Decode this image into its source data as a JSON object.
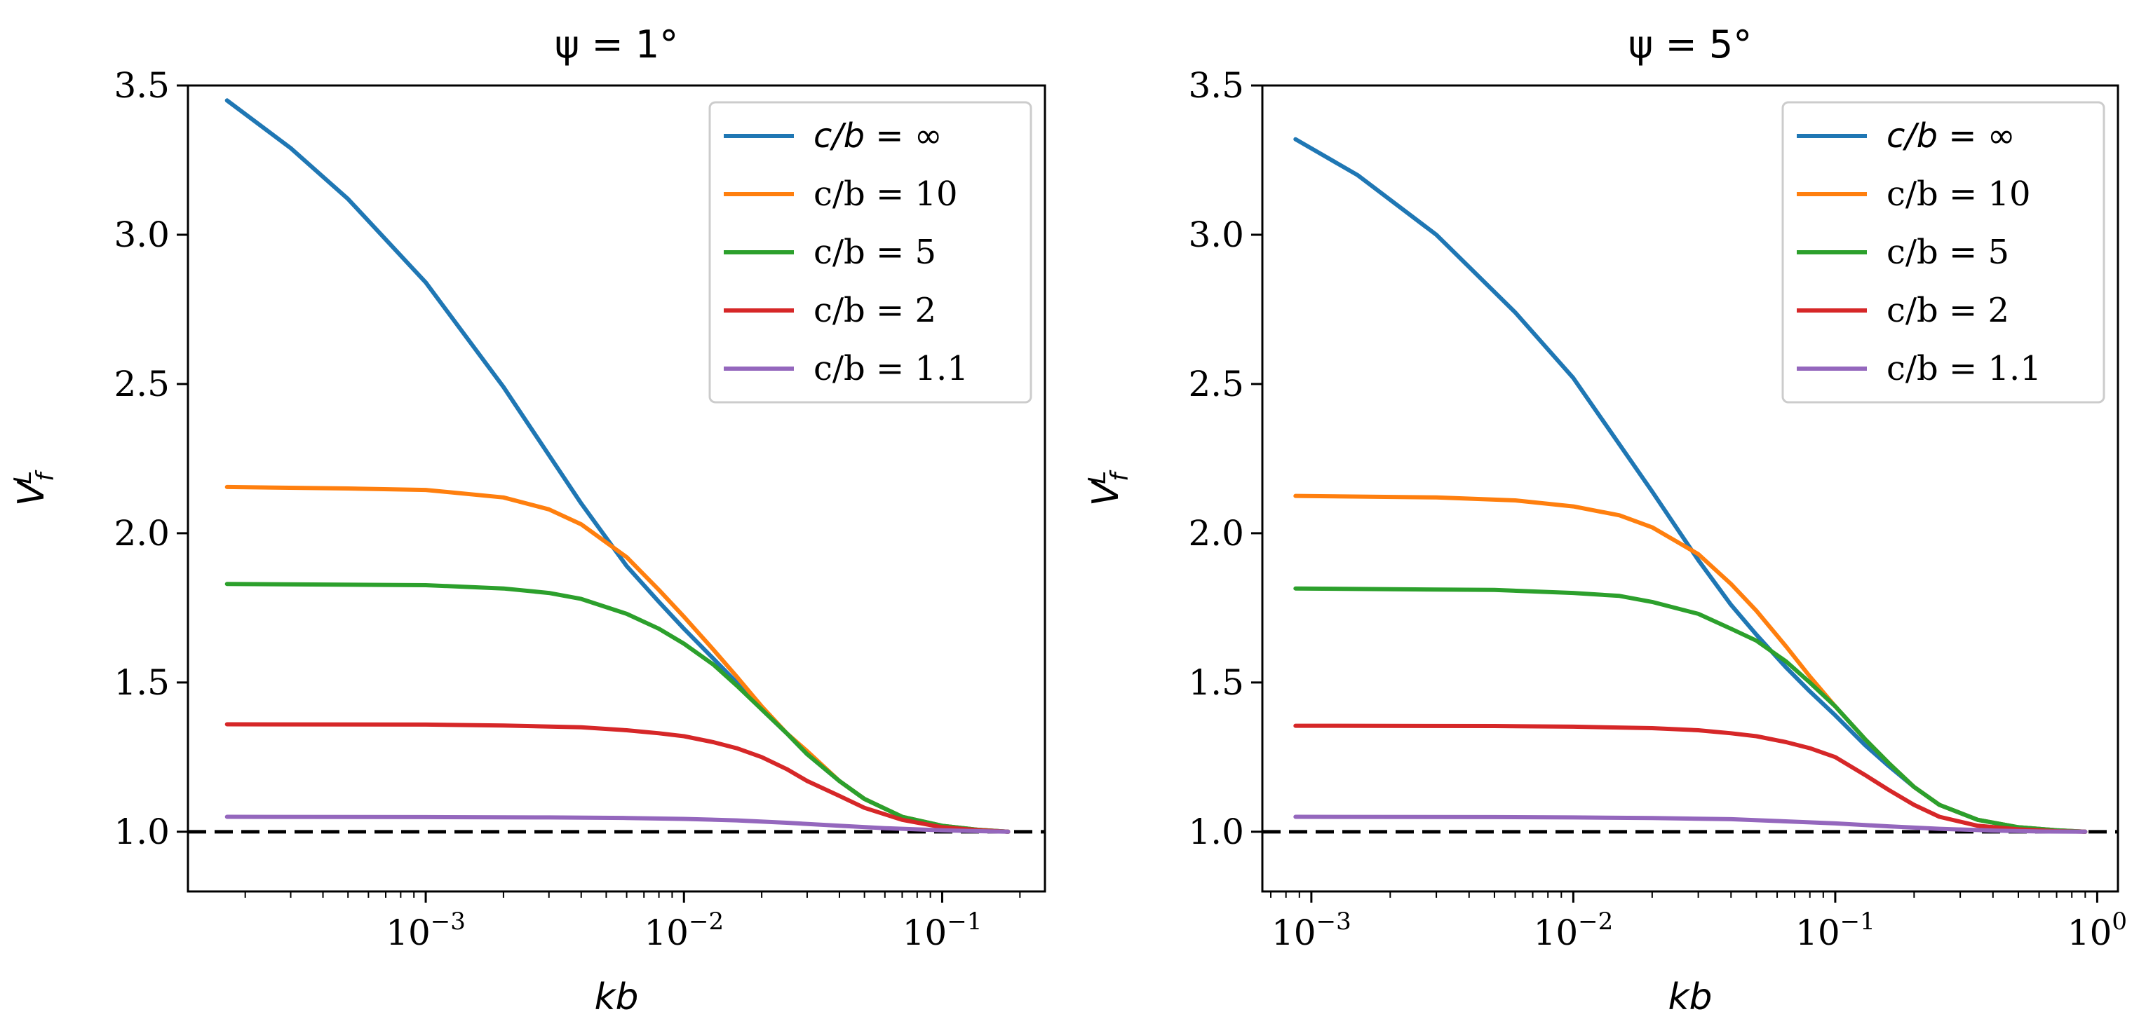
{
  "chart_data": [
    {
      "type": "line",
      "title": "ψ = 1°",
      "xlabel": "kb",
      "ylabel": "V_f^L",
      "xscale": "log",
      "xlim": [
        0.00012,
        0.25
      ],
      "ylim": [
        0.8,
        3.5
      ],
      "yticks": [
        "1.0",
        "1.5",
        "2.0",
        "2.5",
        "3.0",
        "3.5"
      ],
      "xticks": [
        {
          "base": "10",
          "exp": "−3"
        },
        {
          "base": "10",
          "exp": "−2"
        },
        {
          "base": "10",
          "exp": "−1"
        }
      ],
      "legend_position": "top-right",
      "reference_line": {
        "y": 1.0,
        "style": "dashed",
        "color": "#000000"
      },
      "series": [
        {
          "name": "c/b = ∞",
          "color": "#1f77b4",
          "x": [
            0.00017,
            0.0003,
            0.0005,
            0.001,
            0.002,
            0.004,
            0.006,
            0.008,
            0.01,
            0.013,
            0.016,
            0.02,
            0.025,
            0.03,
            0.04,
            0.05,
            0.07,
            0.1,
            0.14,
            0.18
          ],
          "y": [
            3.45,
            3.29,
            3.12,
            2.84,
            2.49,
            2.1,
            1.89,
            1.77,
            1.68,
            1.58,
            1.5,
            1.41,
            1.33,
            1.26,
            1.17,
            1.11,
            1.05,
            1.02,
            1.006,
            1.0
          ]
        },
        {
          "name": "c/b = 10",
          "color": "#ff7f0e",
          "x": [
            0.00017,
            0.0005,
            0.001,
            0.002,
            0.003,
            0.004,
            0.006,
            0.008,
            0.01,
            0.013,
            0.016,
            0.02,
            0.025,
            0.03,
            0.04,
            0.05,
            0.07,
            0.1,
            0.14,
            0.18
          ],
          "y": [
            2.155,
            2.15,
            2.145,
            2.12,
            2.08,
            2.03,
            1.92,
            1.81,
            1.72,
            1.61,
            1.52,
            1.42,
            1.33,
            1.27,
            1.17,
            1.11,
            1.05,
            1.02,
            1.006,
            1.0
          ]
        },
        {
          "name": "c/b = 5",
          "color": "#2ca02c",
          "x": [
            0.00017,
            0.001,
            0.002,
            0.003,
            0.004,
            0.006,
            0.008,
            0.01,
            0.013,
            0.016,
            0.02,
            0.025,
            0.03,
            0.04,
            0.05,
            0.07,
            0.1,
            0.14,
            0.18
          ],
          "y": [
            1.83,
            1.826,
            1.815,
            1.8,
            1.78,
            1.73,
            1.68,
            1.63,
            1.56,
            1.49,
            1.41,
            1.33,
            1.26,
            1.17,
            1.11,
            1.05,
            1.02,
            1.006,
            1.0
          ]
        },
        {
          "name": "c/b = 2",
          "color": "#d62728",
          "x": [
            0.00017,
            0.001,
            0.002,
            0.004,
            0.006,
            0.008,
            0.01,
            0.013,
            0.016,
            0.02,
            0.025,
            0.03,
            0.04,
            0.05,
            0.07,
            0.1,
            0.14,
            0.18
          ],
          "y": [
            1.36,
            1.359,
            1.356,
            1.35,
            1.34,
            1.33,
            1.32,
            1.3,
            1.28,
            1.25,
            1.21,
            1.17,
            1.12,
            1.08,
            1.04,
            1.015,
            1.005,
            1.0
          ]
        },
        {
          "name": "c/b = 1.1",
          "color": "#9467bd",
          "x": [
            0.00017,
            0.001,
            0.003,
            0.006,
            0.01,
            0.016,
            0.025,
            0.04,
            0.06,
            0.1,
            0.14,
            0.18
          ],
          "y": [
            1.05,
            1.049,
            1.048,
            1.046,
            1.043,
            1.038,
            1.03,
            1.02,
            1.012,
            1.005,
            1.002,
            1.0
          ]
        }
      ]
    },
    {
      "type": "line",
      "title": "ψ = 5°",
      "xlabel": "kb",
      "ylabel": "V_f^L",
      "xscale": "log",
      "xlim": [
        0.00065,
        1.2
      ],
      "ylim": [
        0.8,
        3.5
      ],
      "yticks": [
        "1.0",
        "1.5",
        "2.0",
        "2.5",
        "3.0",
        "3.5"
      ],
      "xticks": [
        {
          "base": "10",
          "exp": "−3"
        },
        {
          "base": "10",
          "exp": "−2"
        },
        {
          "base": "10",
          "exp": "−1"
        },
        {
          "base": "10",
          "exp": "0"
        }
      ],
      "legend_position": "top-right",
      "reference_line": {
        "y": 1.0,
        "style": "dashed",
        "color": "#000000"
      },
      "series": [
        {
          "name": "c/b = ∞",
          "color": "#1f77b4",
          "x": [
            0.00087,
            0.0015,
            0.003,
            0.006,
            0.01,
            0.02,
            0.03,
            0.04,
            0.05,
            0.065,
            0.08,
            0.1,
            0.13,
            0.16,
            0.2,
            0.25,
            0.35,
            0.5,
            0.7,
            0.9
          ],
          "y": [
            3.32,
            3.2,
            3.0,
            2.74,
            2.52,
            2.14,
            1.91,
            1.76,
            1.66,
            1.55,
            1.47,
            1.39,
            1.29,
            1.22,
            1.15,
            1.09,
            1.04,
            1.015,
            1.005,
            1.0
          ]
        },
        {
          "name": "c/b = 10",
          "color": "#ff7f0e",
          "x": [
            0.00087,
            0.003,
            0.006,
            0.01,
            0.015,
            0.02,
            0.03,
            0.04,
            0.05,
            0.065,
            0.08,
            0.1,
            0.13,
            0.16,
            0.2,
            0.25,
            0.35,
            0.5,
            0.7,
            0.9
          ],
          "y": [
            2.125,
            2.12,
            2.11,
            2.09,
            2.06,
            2.02,
            1.93,
            1.83,
            1.74,
            1.62,
            1.52,
            1.42,
            1.31,
            1.23,
            1.15,
            1.09,
            1.04,
            1.015,
            1.005,
            1.0
          ]
        },
        {
          "name": "c/b = 5",
          "color": "#2ca02c",
          "x": [
            0.00087,
            0.005,
            0.01,
            0.015,
            0.02,
            0.03,
            0.04,
            0.05,
            0.065,
            0.08,
            0.1,
            0.13,
            0.16,
            0.2,
            0.25,
            0.35,
            0.5,
            0.7,
            0.9
          ],
          "y": [
            1.815,
            1.81,
            1.8,
            1.79,
            1.77,
            1.73,
            1.68,
            1.64,
            1.57,
            1.5,
            1.42,
            1.31,
            1.23,
            1.15,
            1.09,
            1.04,
            1.015,
            1.005,
            1.0
          ]
        },
        {
          "name": "c/b = 2",
          "color": "#d62728",
          "x": [
            0.00087,
            0.005,
            0.01,
            0.02,
            0.03,
            0.04,
            0.05,
            0.065,
            0.08,
            0.1,
            0.13,
            0.16,
            0.2,
            0.25,
            0.35,
            0.5,
            0.7,
            0.9
          ],
          "y": [
            1.355,
            1.354,
            1.352,
            1.347,
            1.34,
            1.33,
            1.32,
            1.3,
            1.28,
            1.25,
            1.19,
            1.14,
            1.09,
            1.05,
            1.02,
            1.008,
            1.002,
            1.0
          ]
        },
        {
          "name": "c/b = 1.1",
          "color": "#9467bd",
          "x": [
            0.00087,
            0.005,
            0.01,
            0.02,
            0.04,
            0.06,
            0.1,
            0.16,
            0.25,
            0.4,
            0.6,
            0.9
          ],
          "y": [
            1.05,
            1.049,
            1.048,
            1.046,
            1.042,
            1.036,
            1.028,
            1.018,
            1.01,
            1.004,
            1.001,
            1.0
          ]
        }
      ]
    }
  ]
}
